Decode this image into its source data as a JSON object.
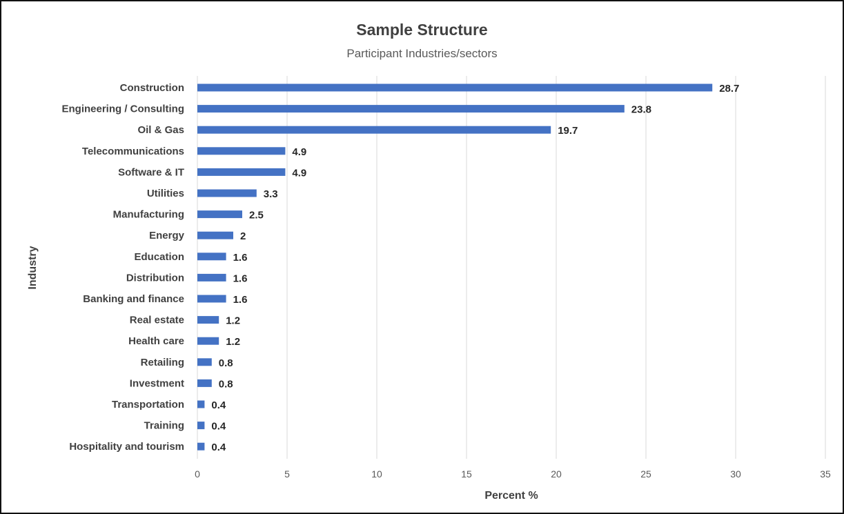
{
  "chart_data": {
    "type": "bar",
    "orientation": "horizontal",
    "title": "Sample Structure",
    "subtitle": "Participant Industries/sectors",
    "xlabel": "Percent %",
    "ylabel": "Industry",
    "xlim": [
      0,
      35
    ],
    "xticks": [
      "0",
      "5",
      "10",
      "15",
      "20",
      "25",
      "30",
      "35"
    ],
    "grid": "vertical",
    "bar_color": "#4472C4",
    "categories": [
      "Construction",
      "Engineering / Consulting",
      "Oil & Gas",
      "Telecommunications",
      "Software & IT",
      "Utilities",
      "Manufacturing",
      "Energy",
      "Education",
      "Distribution",
      "Banking and finance",
      "Real estate",
      "Health care",
      "Retailing",
      "Investment",
      "Transportation",
      "Training",
      "Hospitality and tourism"
    ],
    "values": [
      28.7,
      23.8,
      19.7,
      4.9,
      4.9,
      3.3,
      2.5,
      2,
      1.6,
      1.6,
      1.6,
      1.2,
      1.2,
      0.8,
      0.8,
      0.4,
      0.4,
      0.4
    ],
    "value_labels": [
      "28.7",
      "23.8",
      "19.7",
      "4.9",
      "4.9",
      "3.3",
      "2.5",
      "2",
      "1.6",
      "1.6",
      "1.6",
      "1.2",
      "1.2",
      "0.8",
      "0.8",
      "0.4",
      "0.4",
      "0.4"
    ]
  }
}
